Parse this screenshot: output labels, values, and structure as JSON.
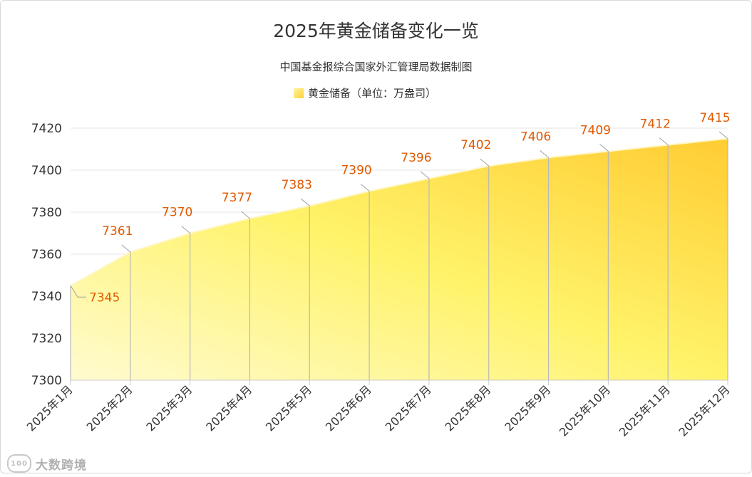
{
  "chart_data": {
    "type": "area",
    "title": "2025年黄金储备变化一览",
    "subtitle": "中国基金报综合国家外汇管理局数据制图",
    "series": [
      {
        "name": "黄金储备（单位：万盎司）",
        "values": [
          7345,
          7361,
          7370,
          7377,
          7383,
          7390,
          7396,
          7402,
          7406,
          7409,
          7412,
          7415
        ]
      }
    ],
    "categories": [
      "2025年1月",
      "2025年2月",
      "2025年3月",
      "2025年4月",
      "2025年5月",
      "2025年6月",
      "2025年7月",
      "2025年8月",
      "2025年9月",
      "2025年10月",
      "2025年11月",
      "2025年12月"
    ],
    "ylim": [
      7300,
      7420
    ],
    "yticks": [
      7300,
      7320,
      7340,
      7360,
      7380,
      7400,
      7420
    ],
    "grid": true,
    "legend": "top-center",
    "colors": {
      "fill_start": "#fffbd0",
      "fill_mid": "#fff36a",
      "fill_end": "#ffcc33",
      "label": "#e05a00",
      "grid": "#e6e6e6",
      "axis": "#cccccc"
    }
  },
  "watermark": {
    "text": "大数跨境"
  }
}
